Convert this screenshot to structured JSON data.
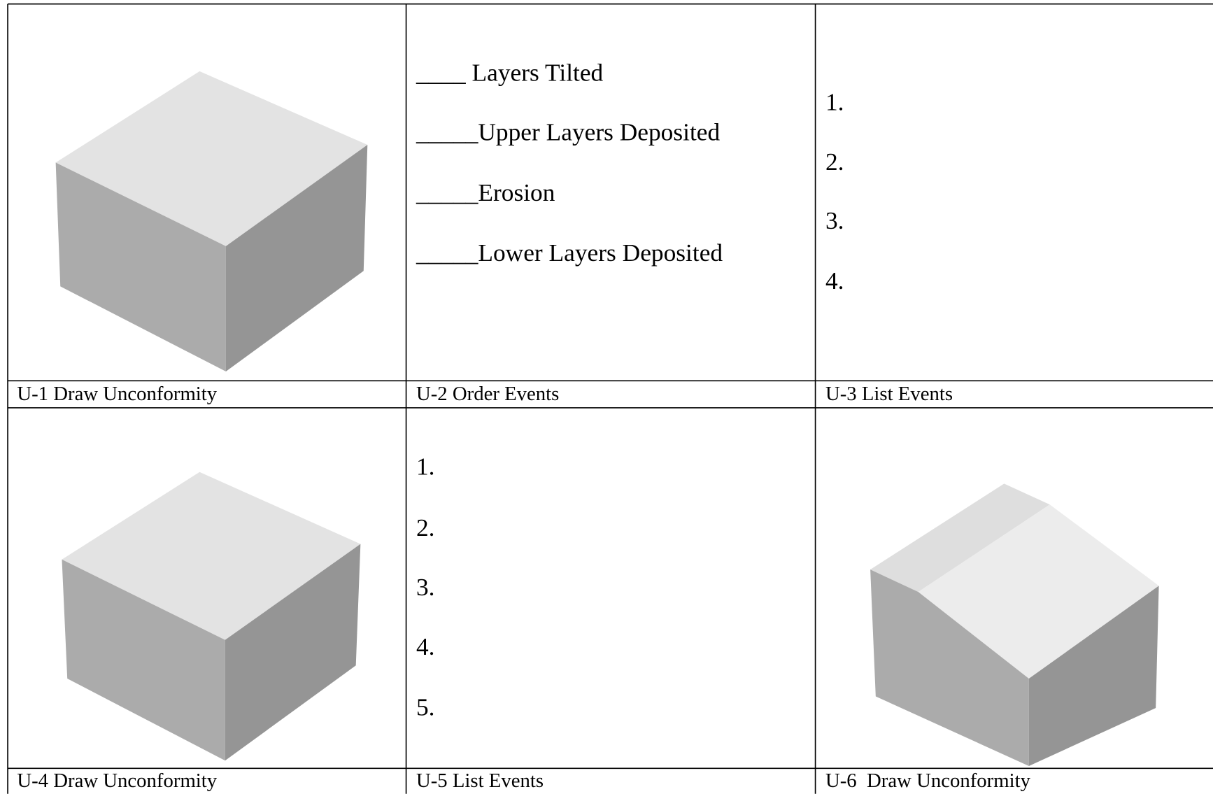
{
  "cells": [
    {
      "caption": "U-1 Draw Unconformity"
    },
    {
      "caption": "U-2 Order Events",
      "lines": [
        "____ Layers Tilted",
        "_____Upper Layers Deposited",
        "_____Erosion",
        "_____Lower Layers Deposited"
      ]
    },
    {
      "caption": "U-3 List Events",
      "lines": [
        "1.",
        "2.",
        "3.",
        "4."
      ]
    },
    {
      "caption": "U-4 Draw Unconformity"
    },
    {
      "caption": "U-5 List Events",
      "lines": [
        "1.",
        "2.",
        "3.",
        "4.",
        "5."
      ]
    },
    {
      "caption": "U-6  Draw Unconformity"
    }
  ]
}
